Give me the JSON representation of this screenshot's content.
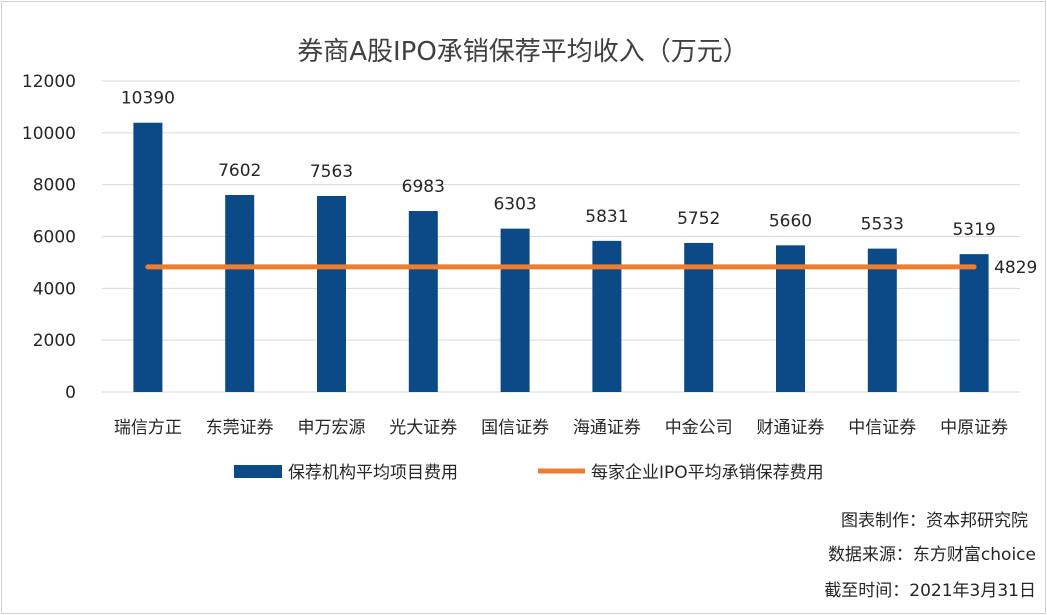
{
  "chart_data": {
    "type": "bar",
    "title": "券商A股IPO承销保荐平均收入（万元）",
    "categories": [
      "瑞信方正",
      "东莞证券",
      "申万宏源",
      "光大证券",
      "国信证券",
      "海通证券",
      "中金公司",
      "财通证券",
      "中信证券",
      "中原证券"
    ],
    "series": [
      {
        "name": "保荐机构平均项目费用",
        "type": "bar",
        "values": [
          10390,
          7602,
          7563,
          6983,
          6303,
          5831,
          5752,
          5660,
          5533,
          5319
        ]
      },
      {
        "name": "每家企业IPO平均承销保荐费用",
        "type": "line",
        "values": [
          4829,
          4829,
          4829,
          4829,
          4829,
          4829,
          4829,
          4829,
          4829,
          4829
        ],
        "end_label": "4829"
      }
    ],
    "ylim": [
      0,
      12000
    ],
    "yticks": [
      0,
      2000,
      4000,
      6000,
      8000,
      10000,
      12000
    ],
    "grid": true,
    "legend_position": "bottom",
    "xlabel": "",
    "ylabel": "",
    "colors": {
      "bar": "#0b4a86",
      "line": "#ed7d31",
      "grid": "#d9d9d9"
    }
  },
  "footer": {
    "maker": "图表制作：资本邦研究院",
    "source": "数据来源：东方财富choice",
    "date": "截至时间：2021年3月31日"
  }
}
